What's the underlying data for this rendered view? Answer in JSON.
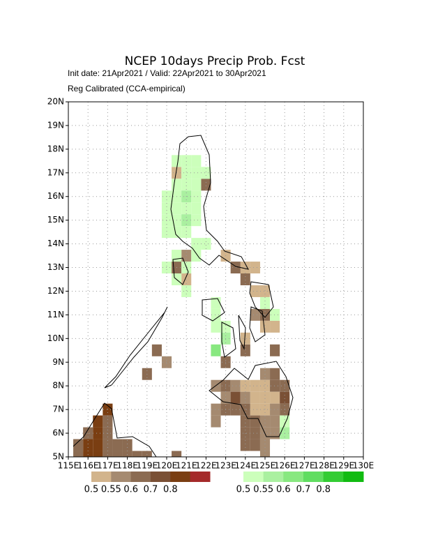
{
  "map": {
    "title": "NCEP 10days Precip Prob. Fcst",
    "subtitle": "Init date: 21Apr2021 / Valid: 22Apr2021 to 30Apr2021",
    "method": "Reg Calibrated (CCA-empirical)",
    "lonlim": [
      115,
      130
    ],
    "latlim": [
      5,
      20
    ],
    "cell_size": 0.5,
    "lon_ticks": [
      {
        "value": 115,
        "label": "115E"
      },
      {
        "value": 116,
        "label": "116E"
      },
      {
        "value": 117,
        "label": "117E"
      },
      {
        "value": 118,
        "label": "118E"
      },
      {
        "value": 119,
        "label": "119E"
      },
      {
        "value": 120,
        "label": "120E"
      },
      {
        "value": 121,
        "label": "121E"
      },
      {
        "value": 122,
        "label": "122E"
      },
      {
        "value": 123,
        "label": "123E"
      },
      {
        "value": 124,
        "label": "124E"
      },
      {
        "value": 125,
        "label": "125E"
      },
      {
        "value": 126,
        "label": "126E"
      },
      {
        "value": 127,
        "label": "127E"
      },
      {
        "value": 128,
        "label": "128E"
      },
      {
        "value": 129,
        "label": "129E"
      },
      {
        "value": 130,
        "label": "130E"
      }
    ],
    "lat_ticks": [
      {
        "value": 5,
        "label": "5N"
      },
      {
        "value": 6,
        "label": "6N"
      },
      {
        "value": 7,
        "label": "7N"
      },
      {
        "value": 8,
        "label": "8N"
      },
      {
        "value": 9,
        "label": "9N"
      },
      {
        "value": 10,
        "label": "10N"
      },
      {
        "value": 11,
        "label": "11N"
      },
      {
        "value": 12,
        "label": "12N"
      },
      {
        "value": 13,
        "label": "13N"
      },
      {
        "value": 14,
        "label": "14N"
      },
      {
        "value": 15,
        "label": "15N"
      },
      {
        "value": 16,
        "label": "16N"
      },
      {
        "value": 17,
        "label": "17N"
      },
      {
        "value": 18,
        "label": "18N"
      },
      {
        "value": 19,
        "label": "19N"
      },
      {
        "value": 20,
        "label": "20N"
      }
    ],
    "dry": {
      "levels": [
        {
          "value": 0.5,
          "label": "0.5"
        },
        {
          "value": 0.55,
          "label": "0.55"
        },
        0.6,
        0.7,
        0.8
      ],
      "colors": [
        "#d2b48c",
        "#a58a70",
        "#8b6b52",
        "#7a5035",
        "#7a3e12",
        "#a52a2a"
      ],
      "cells": [
        [
          120.5,
          17,
          0.52
        ],
        [
          122,
          16.5,
          0.65
        ],
        [
          121,
          13.5,
          0.57
        ],
        [
          120.5,
          13,
          0.65
        ],
        [
          121,
          12.5,
          0.52
        ],
        [
          123,
          13.5,
          0.52
        ],
        [
          124,
          13,
          0.52
        ],
        [
          124.5,
          13,
          0.52
        ],
        [
          124,
          12.5,
          0.65
        ],
        [
          123.5,
          13,
          0.65
        ],
        [
          124.5,
          12,
          0.52
        ],
        [
          125,
          12,
          0.52
        ],
        [
          125,
          11,
          0.65
        ],
        [
          125,
          10.5,
          0.52
        ],
        [
          124.5,
          11,
          0.57
        ],
        [
          125.5,
          10.5,
          0.52
        ],
        [
          125.5,
          9.5,
          0.65
        ],
        [
          124,
          9.5,
          0.65
        ],
        [
          124,
          10,
          0.52
        ],
        [
          123,
          9,
          0.65
        ],
        [
          119.5,
          9.5,
          0.65
        ],
        [
          120,
          9,
          0.57
        ],
        [
          119,
          8.5,
          0.65
        ],
        [
          125,
          8.5,
          0.57
        ],
        [
          125.5,
          8.5,
          0.65
        ],
        [
          122.5,
          8,
          0.57
        ],
        [
          123,
          8,
          0.65
        ],
        [
          123.5,
          8,
          0.57
        ],
        [
          124,
          8,
          0.52
        ],
        [
          124.5,
          8,
          0.52
        ],
        [
          125,
          8,
          0.52
        ],
        [
          125.5,
          8,
          0.65
        ],
        [
          126,
          8,
          0.65
        ],
        [
          123,
          7.5,
          0.57
        ],
        [
          123.5,
          7.5,
          0.75
        ],
        [
          124,
          7.5,
          0.57
        ],
        [
          124.5,
          7.5,
          0.52
        ],
        [
          125,
          7.5,
          0.52
        ],
        [
          125.5,
          7.5,
          0.52
        ],
        [
          126,
          7.5,
          0.75
        ],
        [
          122.5,
          7,
          0.57
        ],
        [
          123,
          7,
          0.65
        ],
        [
          123.5,
          7,
          0.65
        ],
        [
          124,
          7,
          0.65
        ],
        [
          124.5,
          7,
          0.52
        ],
        [
          125,
          7,
          0.52
        ],
        [
          125.5,
          7,
          0.57
        ],
        [
          126,
          7,
          0.65
        ],
        [
          122.5,
          6.5,
          0.57
        ],
        [
          124,
          6.5,
          0.65
        ],
        [
          124.5,
          6.5,
          0.65
        ],
        [
          125,
          6.5,
          0.57
        ],
        [
          125.5,
          6.5,
          0.57
        ],
        [
          124,
          6,
          0.65
        ],
        [
          124.5,
          6,
          0.65
        ],
        [
          125,
          6,
          0.57
        ],
        [
          125.5,
          6,
          0.57
        ],
        [
          124,
          5.5,
          0.65
        ],
        [
          124.5,
          5.5,
          0.65
        ],
        [
          125,
          5.5,
          0.57
        ],
        [
          125,
          5,
          0.57
        ],
        [
          117,
          7,
          0.85
        ],
        [
          116.5,
          6.5,
          0.85
        ],
        [
          117,
          6.5,
          0.65
        ],
        [
          116.5,
          6,
          0.85
        ],
        [
          117,
          6,
          0.65
        ],
        [
          116,
          6,
          0.65
        ],
        [
          116,
          5.5,
          0.85
        ],
        [
          116.5,
          5.5,
          0.85
        ],
        [
          115.5,
          5,
          0.65
        ],
        [
          116,
          5,
          0.85
        ],
        [
          116.5,
          5,
          0.85
        ],
        [
          117,
          5.5,
          0.65
        ],
        [
          117.5,
          5.5,
          0.65
        ],
        [
          117.5,
          5,
          0.65
        ],
        [
          118,
          5.5,
          0.65
        ],
        [
          118,
          5,
          0.65
        ],
        [
          117,
          5,
          0.65
        ],
        [
          115.5,
          5.5,
          0.65
        ],
        [
          118.5,
          5,
          0.65
        ],
        [
          119,
          5,
          0.65
        ],
        [
          120.5,
          5,
          0.65
        ]
      ]
    },
    "wet": {
      "levels": [
        {
          "value": 0.5,
          "label": "0.5"
        },
        {
          "value": 0.55,
          "label": "0.55"
        },
        0.6,
        0.7,
        0.8
      ],
      "colors": [
        "#ccffbb",
        "#aaf0a0",
        "#88e880",
        "#60dd60",
        "#33cc33",
        "#11bb11"
      ],
      "cells": [
        [
          120.5,
          17.5,
          0.52
        ],
        [
          121,
          17.5,
          0.52
        ],
        [
          121.5,
          17.5,
          0.52
        ],
        [
          121,
          17,
          0.52
        ],
        [
          121.5,
          17,
          0.52
        ],
        [
          122,
          17,
          0.52
        ],
        [
          120.5,
          16.5,
          0.52
        ],
        [
          121,
          16.5,
          0.52
        ],
        [
          121.5,
          16.5,
          0.52
        ],
        [
          120,
          16,
          0.52
        ],
        [
          120.5,
          16,
          0.52
        ],
        [
          121,
          16,
          0.57
        ],
        [
          121.5,
          16,
          0.52
        ],
        [
          120,
          15.5,
          0.52
        ],
        [
          120.5,
          15.5,
          0.52
        ],
        [
          121,
          15.5,
          0.52
        ],
        [
          121.5,
          15.5,
          0.52
        ],
        [
          120,
          15,
          0.52
        ],
        [
          120.5,
          15,
          0.52
        ],
        [
          121,
          15,
          0.57
        ],
        [
          121.5,
          15,
          0.52
        ],
        [
          120,
          14.5,
          0.52
        ],
        [
          120.5,
          14.5,
          0.52
        ],
        [
          121,
          14.5,
          0.52
        ],
        [
          121.5,
          14,
          0.52
        ],
        [
          122,
          14,
          0.52
        ],
        [
          120.5,
          13.5,
          0.52
        ],
        [
          121.5,
          13.5,
          0.52
        ],
        [
          120,
          13,
          0.52
        ],
        [
          121,
          13,
          0.52
        ],
        [
          120.5,
          12.5,
          0.52
        ],
        [
          121,
          12,
          0.52
        ],
        [
          122.5,
          11.5,
          0.52
        ],
        [
          122.5,
          11,
          0.52
        ],
        [
          122.5,
          10.5,
          0.52
        ],
        [
          123,
          10.5,
          0.52
        ],
        [
          123,
          10,
          0.57
        ],
        [
          122.5,
          9.5,
          0.65
        ],
        [
          125,
          11.5,
          0.52
        ],
        [
          125.5,
          11,
          0.52
        ],
        [
          126,
          6.5,
          0.52
        ],
        [
          126,
          6,
          0.57
        ]
      ]
    }
  }
}
